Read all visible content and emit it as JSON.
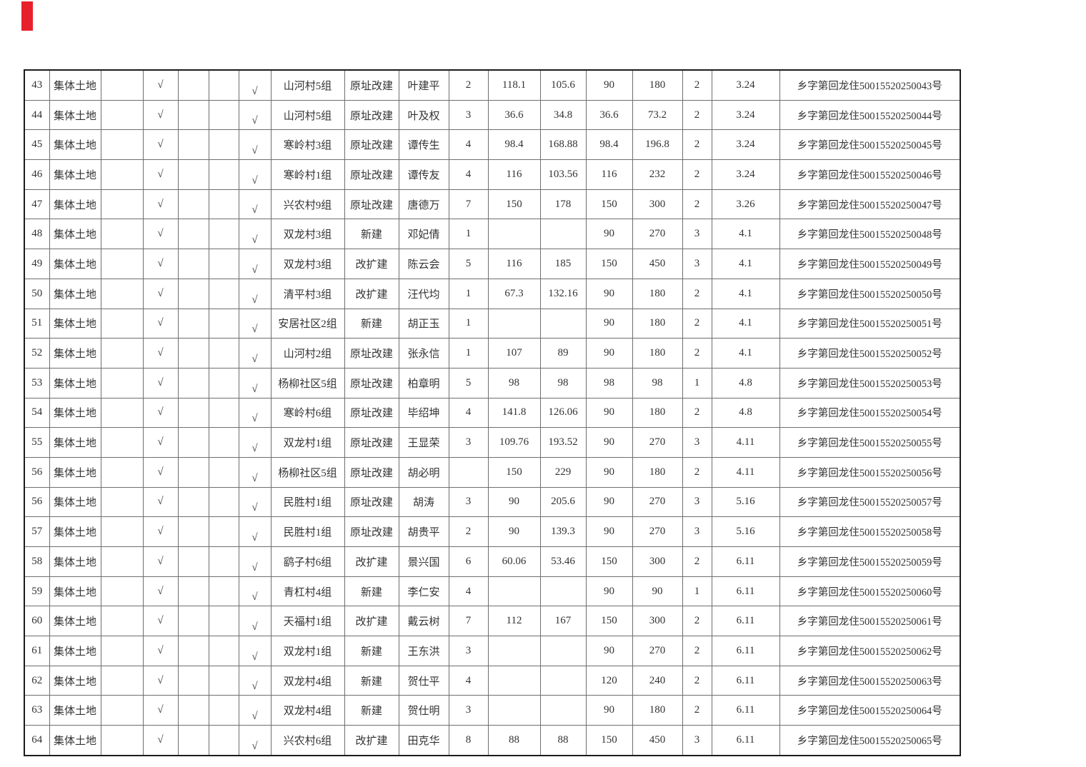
{
  "page": {
    "background_color": "#ffffff",
    "red_marker_color": "#e8202c",
    "grid_color": "#6e6e6e",
    "outer_border_color": "#1c1c1c",
    "text_color": "#333333"
  },
  "table": {
    "land_type_label": "集体土地",
    "check_mark": "√",
    "construction_types_seen": [
      "原址改建",
      "新建",
      "改扩建"
    ],
    "permit_prefix": "乡字第回龙住",
    "permit_suffix": "号",
    "rows": [
      [
        "43",
        "集体土地",
        "",
        "√",
        "",
        "",
        "√",
        "山河村5组",
        "原址改建",
        "叶建平",
        "2",
        "118.1",
        "105.6",
        "90",
        "180",
        "2",
        "3.24",
        "乡字第回龙住50015520250043号"
      ],
      [
        "44",
        "集体土地",
        "",
        "√",
        "",
        "",
        "√",
        "山河村5组",
        "原址改建",
        "叶及权",
        "3",
        "36.6",
        "34.8",
        "36.6",
        "73.2",
        "2",
        "3.24",
        "乡字第回龙住50015520250044号"
      ],
      [
        "45",
        "集体土地",
        "",
        "√",
        "",
        "",
        "√",
        "寒岭村3组",
        "原址改建",
        "谭传生",
        "4",
        "98.4",
        "168.88",
        "98.4",
        "196.8",
        "2",
        "3.24",
        "乡字第回龙住50015520250045号"
      ],
      [
        "46",
        "集体土地",
        "",
        "√",
        "",
        "",
        "√",
        "寒岭村1组",
        "原址改建",
        "谭传友",
        "4",
        "116",
        "103.56",
        "116",
        "232",
        "2",
        "3.24",
        "乡字第回龙住50015520250046号"
      ],
      [
        "47",
        "集体土地",
        "",
        "√",
        "",
        "",
        "√",
        "兴农村9组",
        "原址改建",
        "唐德万",
        "7",
        "150",
        "178",
        "150",
        "300",
        "2",
        "3.26",
        "乡字第回龙住50015520250047号"
      ],
      [
        "48",
        "集体土地",
        "",
        "√",
        "",
        "",
        "√",
        "双龙村3组",
        "新建",
        "邓妃倩",
        "1",
        "",
        "",
        "90",
        "270",
        "3",
        "4.1",
        "乡字第回龙住50015520250048号"
      ],
      [
        "49",
        "集体土地",
        "",
        "√",
        "",
        "",
        "√",
        "双龙村3组",
        "改扩建",
        "陈云会",
        "5",
        "116",
        "185",
        "150",
        "450",
        "3",
        "4.1",
        "乡字第回龙住50015520250049号"
      ],
      [
        "50",
        "集体土地",
        "",
        "√",
        "",
        "",
        "√",
        "清平村3组",
        "改扩建",
        "汪代均",
        "1",
        "67.3",
        "132.16",
        "90",
        "180",
        "2",
        "4.1",
        "乡字第回龙住50015520250050号"
      ],
      [
        "51",
        "集体土地",
        "",
        "√",
        "",
        "",
        "√",
        "安居社区2组",
        "新建",
        "胡正玉",
        "1",
        "",
        "",
        "90",
        "180",
        "2",
        "4.1",
        "乡字第回龙住50015520250051号"
      ],
      [
        "52",
        "集体土地",
        "",
        "√",
        "",
        "",
        "√",
        "山河村2组",
        "原址改建",
        "张永信",
        "1",
        "107",
        "89",
        "90",
        "180",
        "2",
        "4.1",
        "乡字第回龙住50015520250052号"
      ],
      [
        "53",
        "集体土地",
        "",
        "√",
        "",
        "",
        "√",
        "杨柳社区5组",
        "原址改建",
        "柏章明",
        "5",
        "98",
        "98",
        "98",
        "98",
        "1",
        "4.8",
        "乡字第回龙住50015520250053号"
      ],
      [
        "54",
        "集体土地",
        "",
        "√",
        "",
        "",
        "√",
        "寒岭村6组",
        "原址改建",
        "毕绍坤",
        "4",
        "141.8",
        "126.06",
        "90",
        "180",
        "2",
        "4.8",
        "乡字第回龙住50015520250054号"
      ],
      [
        "55",
        "集体土地",
        "",
        "√",
        "",
        "",
        "√",
        "双龙村1组",
        "原址改建",
        "王显荣",
        "3",
        "109.76",
        "193.52",
        "90",
        "270",
        "3",
        "4.11",
        "乡字第回龙住50015520250055号"
      ],
      [
        "56",
        "集体土地",
        "",
        "√",
        "",
        "",
        "√",
        "杨柳社区5组",
        "原址改建",
        "胡必明",
        "",
        "150",
        "229",
        "90",
        "180",
        "2",
        "4.11",
        "乡字第回龙住50015520250056号"
      ],
      [
        "56",
        "集体土地",
        "",
        "√",
        "",
        "",
        "√",
        "民胜村1组",
        "原址改建",
        "胡涛",
        "3",
        "90",
        "205.6",
        "90",
        "270",
        "3",
        "5.16",
        "乡字第回龙住50015520250057号"
      ],
      [
        "57",
        "集体土地",
        "",
        "√",
        "",
        "",
        "√",
        "民胜村1组",
        "原址改建",
        "胡贵平",
        "2",
        "90",
        "139.3",
        "90",
        "270",
        "3",
        "5.16",
        "乡字第回龙住50015520250058号"
      ],
      [
        "58",
        "集体土地",
        "",
        "√",
        "",
        "",
        "√",
        "鹞子村6组",
        "改扩建",
        "景兴国",
        "6",
        "60.06",
        "53.46",
        "150",
        "300",
        "2",
        "6.11",
        "乡字第回龙住50015520250059号"
      ],
      [
        "59",
        "集体土地",
        "",
        "√",
        "",
        "",
        "√",
        "青杠村4组",
        "新建",
        "李仁安",
        "4",
        "",
        "",
        "90",
        "90",
        "1",
        "6.11",
        "乡字第回龙住50015520250060号"
      ],
      [
        "60",
        "集体土地",
        "",
        "√",
        "",
        "",
        "√",
        "天福村1组",
        "改扩建",
        "戴云树",
        "7",
        "112",
        "167",
        "150",
        "300",
        "2",
        "6.11",
        "乡字第回龙住50015520250061号"
      ],
      [
        "61",
        "集体土地",
        "",
        "√",
        "",
        "",
        "√",
        "双龙村1组",
        "新建",
        "王东洪",
        "3",
        "",
        "",
        "90",
        "270",
        "2",
        "6.11",
        "乡字第回龙住50015520250062号"
      ],
      [
        "62",
        "集体土地",
        "",
        "√",
        "",
        "",
        "√",
        "双龙村4组",
        "新建",
        "贺仕平",
        "4",
        "",
        "",
        "120",
        "240",
        "2",
        "6.11",
        "乡字第回龙住50015520250063号"
      ],
      [
        "63",
        "集体土地",
        "",
        "√",
        "",
        "",
        "√",
        "双龙村4组",
        "新建",
        "贺仕明",
        "3",
        "",
        "",
        "90",
        "180",
        "2",
        "6.11",
        "乡字第回龙住50015520250064号"
      ],
      [
        "64",
        "集体土地",
        "",
        "√",
        "",
        "",
        "√",
        "兴农村6组",
        "改扩建",
        "田克华",
        "8",
        "88",
        "88",
        "150",
        "450",
        "3",
        "6.11",
        "乡字第回龙住50015520250065号"
      ]
    ]
  }
}
